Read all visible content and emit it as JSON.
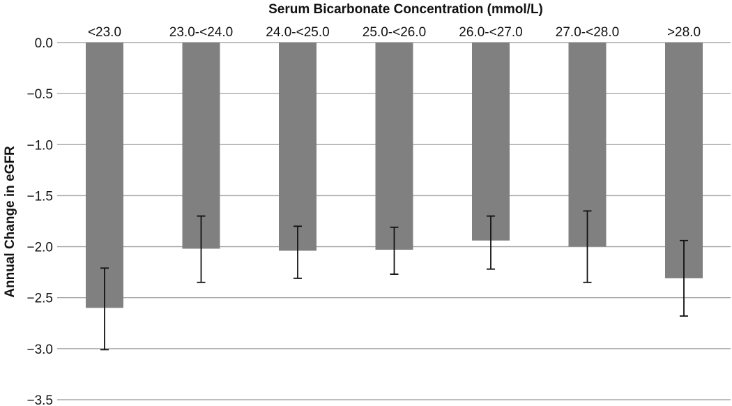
{
  "chart_data": {
    "type": "bar",
    "title": "Serum Bicarbonate Concentration (mmol/L)",
    "xlabel": "",
    "ylabel": "Annual Change in eGFR",
    "categories": [
      "<23.0",
      "23.0-<24.0",
      "24.0-<25.0",
      "25.0-<26.0",
      "26.0-<27.0",
      "27.0-<28.0",
      ">28.0"
    ],
    "values": [
      -2.6,
      -2.02,
      -2.04,
      -2.03,
      -1.94,
      -2.0,
      -2.31
    ],
    "error_low": [
      -3.01,
      -2.35,
      -2.31,
      -2.27,
      -2.22,
      -2.35,
      -2.68
    ],
    "error_high": [
      -2.21,
      -1.7,
      -1.8,
      -1.81,
      -1.7,
      -1.65,
      -1.94
    ],
    "ylim": [
      -3.5,
      0.0
    ],
    "yticks": [
      "0.0",
      "-0.5",
      "-1.0",
      "-1.5",
      "-2.0",
      "-2.5",
      "-3.0",
      "-3.5"
    ],
    "category_axis": "top",
    "grid": true,
    "colors": {
      "bar": "#808080",
      "grid": "#a8a8a8",
      "error": "#111111"
    }
  }
}
